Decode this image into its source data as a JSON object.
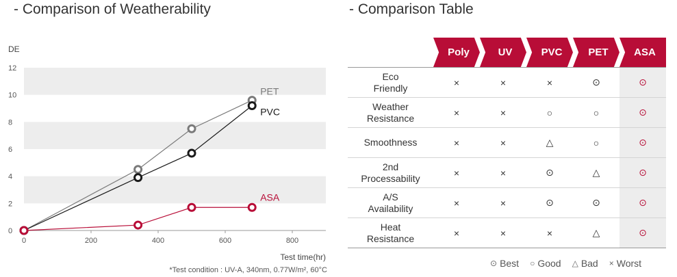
{
  "chart": {
    "title": "- Comparison of Weatherability",
    "footnote": "*Test condition : UV-A, 340nm, 0.77W/m², 60°C"
  },
  "chart_data": {
    "type": "line",
    "title": "- Comparison of Weatherability",
    "xlabel": "Test time(hr)",
    "ylabel": "DE",
    "xlim": [
      0,
      900
    ],
    "ylim": [
      0,
      12
    ],
    "xticks": [
      0,
      200,
      400,
      600,
      800
    ],
    "yticks": [
      0,
      2,
      4,
      6,
      8,
      10,
      12
    ],
    "grid": "alternating horizontal bands",
    "series": [
      {
        "name": "PET",
        "color": "#7a7a7a",
        "x": [
          0,
          340,
          500,
          680
        ],
        "y": [
          0,
          4.5,
          7.5,
          9.6
        ]
      },
      {
        "name": "PVC",
        "color": "#1a1a1a",
        "x": [
          0,
          340,
          500,
          680
        ],
        "y": [
          0,
          3.9,
          5.7,
          9.2
        ]
      },
      {
        "name": "ASA",
        "color": "#b80d37",
        "x": [
          0,
          340,
          500,
          680
        ],
        "y": [
          0,
          0.4,
          1.7,
          1.7
        ]
      }
    ]
  },
  "table": {
    "title": "- Comparison Table",
    "columns": [
      "Poly",
      "UV",
      "PVC",
      "PET",
      "ASA"
    ],
    "rows": [
      {
        "label_lines": [
          "Eco",
          "Friendly"
        ],
        "values": [
          "×",
          "×",
          "×",
          "⊙",
          "⊙"
        ]
      },
      {
        "label_lines": [
          "Weather",
          "Resistance"
        ],
        "values": [
          "×",
          "×",
          "○",
          "○",
          "⊙"
        ]
      },
      {
        "label_lines": [
          "Smoothness"
        ],
        "values": [
          "×",
          "×",
          "△",
          "○",
          "⊙"
        ]
      },
      {
        "label_lines": [
          "2nd",
          "Processability"
        ],
        "values": [
          "×",
          "×",
          "⊙",
          "△",
          "⊙"
        ]
      },
      {
        "label_lines": [
          "A/S",
          "Availability"
        ],
        "values": [
          "×",
          "×",
          "⊙",
          "⊙",
          "⊙"
        ]
      },
      {
        "label_lines": [
          "Heat",
          "Resistance"
        ],
        "values": [
          "×",
          "×",
          "×",
          "△",
          "⊙"
        ]
      }
    ]
  },
  "legend": [
    {
      "symbol": "⊙",
      "label": "Best"
    },
    {
      "symbol": "○",
      "label": "Good"
    },
    {
      "symbol": "△",
      "label": "Bad"
    },
    {
      "symbol": "×",
      "label": "Worst"
    }
  ]
}
